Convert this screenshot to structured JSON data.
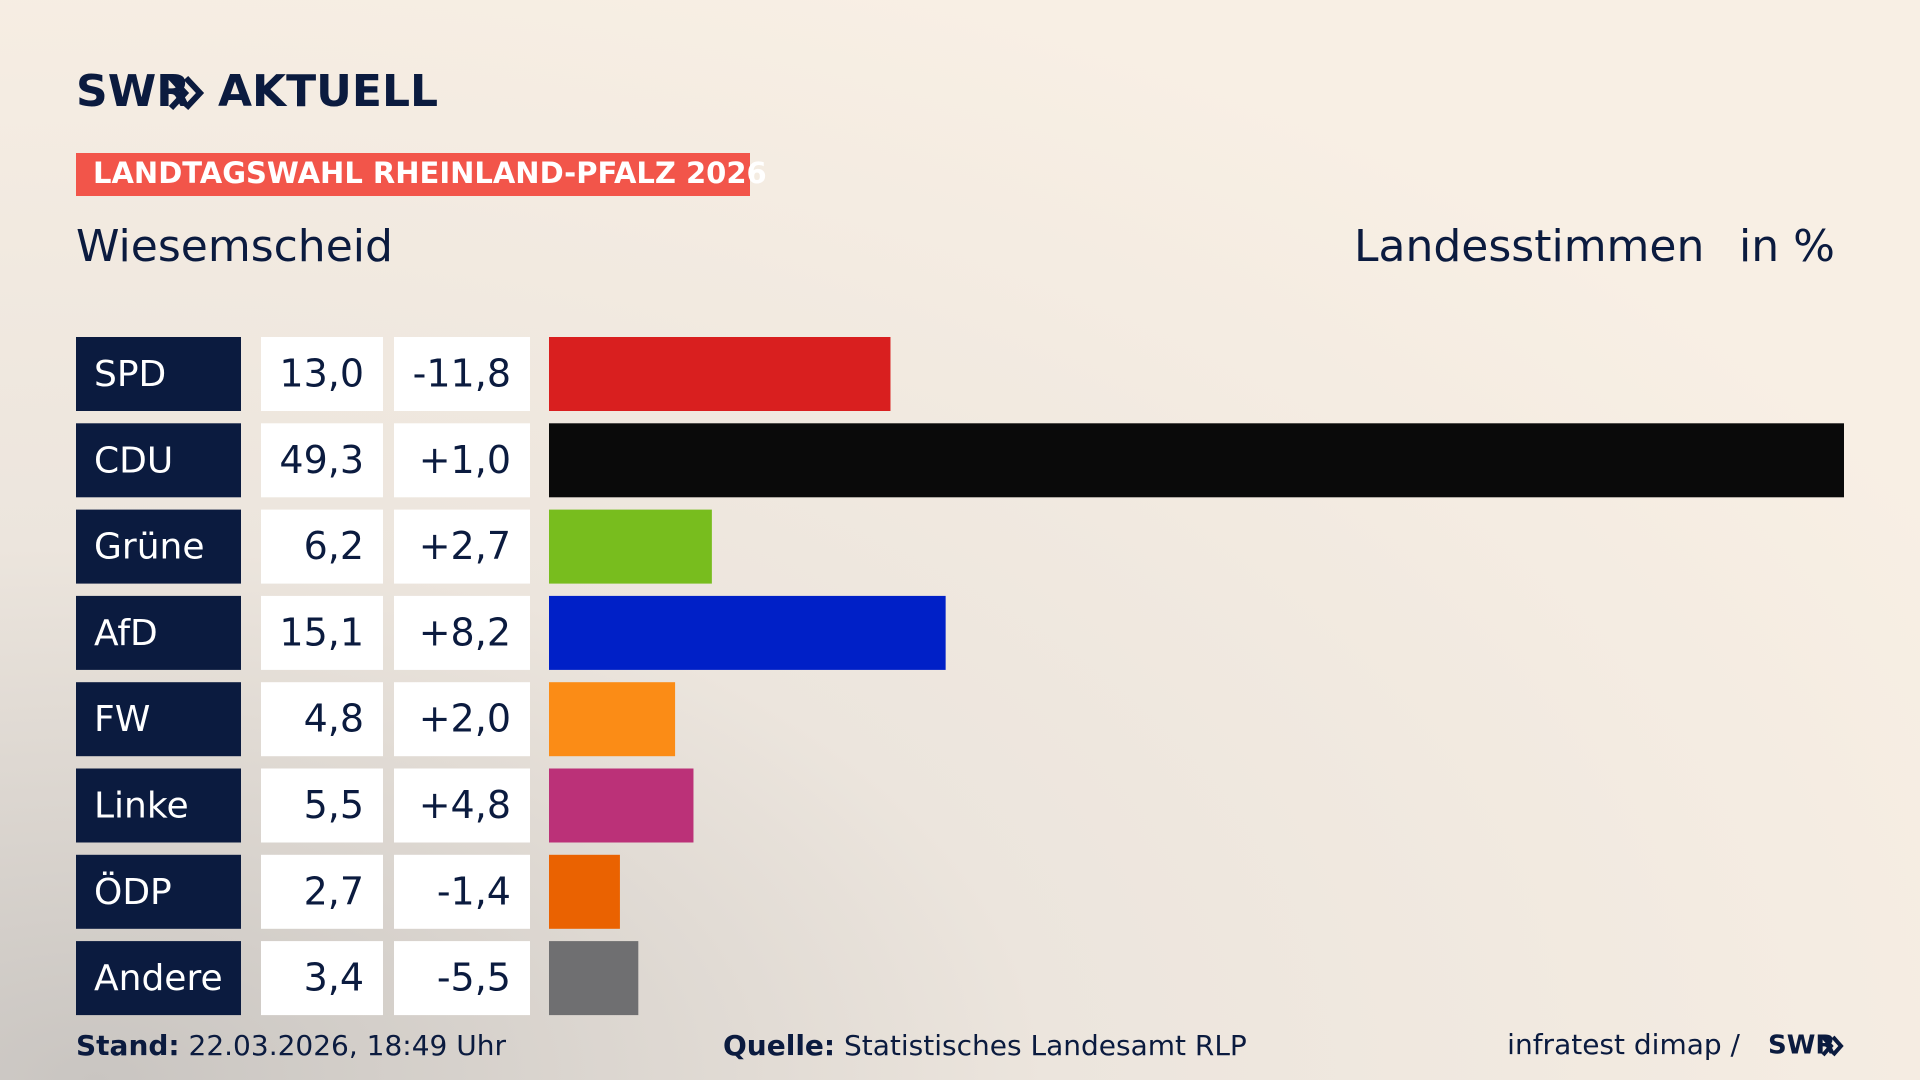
{
  "chart_data": {
    "type": "bar",
    "brand": "SWR",
    "brand_suffix": "AKTUELL",
    "title": "LANDTAGSWAHL RHEINLAND-PFALZ 2026",
    "subtitle": "Wiesemscheid",
    "measure": "Landesstimmen",
    "unit": "in %",
    "categories": [
      "SPD",
      "CDU",
      "Grüne",
      "AfD",
      "FW",
      "Linke",
      "ÖDP",
      "Andere"
    ],
    "values": [
      13.0,
      49.3,
      6.2,
      15.1,
      4.8,
      5.5,
      2.7,
      3.4
    ],
    "value_labels": [
      "13,0",
      "49,3",
      "6,2",
      "15,1",
      "4,8",
      "5,5",
      "2,7",
      "3,4"
    ],
    "change": [
      -11.8,
      1.0,
      2.7,
      8.2,
      2.0,
      4.8,
      -1.4,
      -5.5
    ],
    "change_labels": [
      "-11,8",
      "+1,0",
      "+2,7",
      "+8,2",
      "+2,0",
      "+4,8",
      "-1,4",
      "-5,5"
    ],
    "colors": [
      "#d91f1f",
      "#0a0a0a",
      "#78bd1e",
      "#0020c7",
      "#fb8c16",
      "#bb3178",
      "#ea6201",
      "#6f6f71"
    ],
    "footer": {
      "stand_label": "Stand:",
      "stand": "22.03.2026, 18:49 Uhr",
      "source_label": "Quelle:",
      "source": "Statistisches Landesamt RLP",
      "credit": "infratest dimap /"
    }
  }
}
